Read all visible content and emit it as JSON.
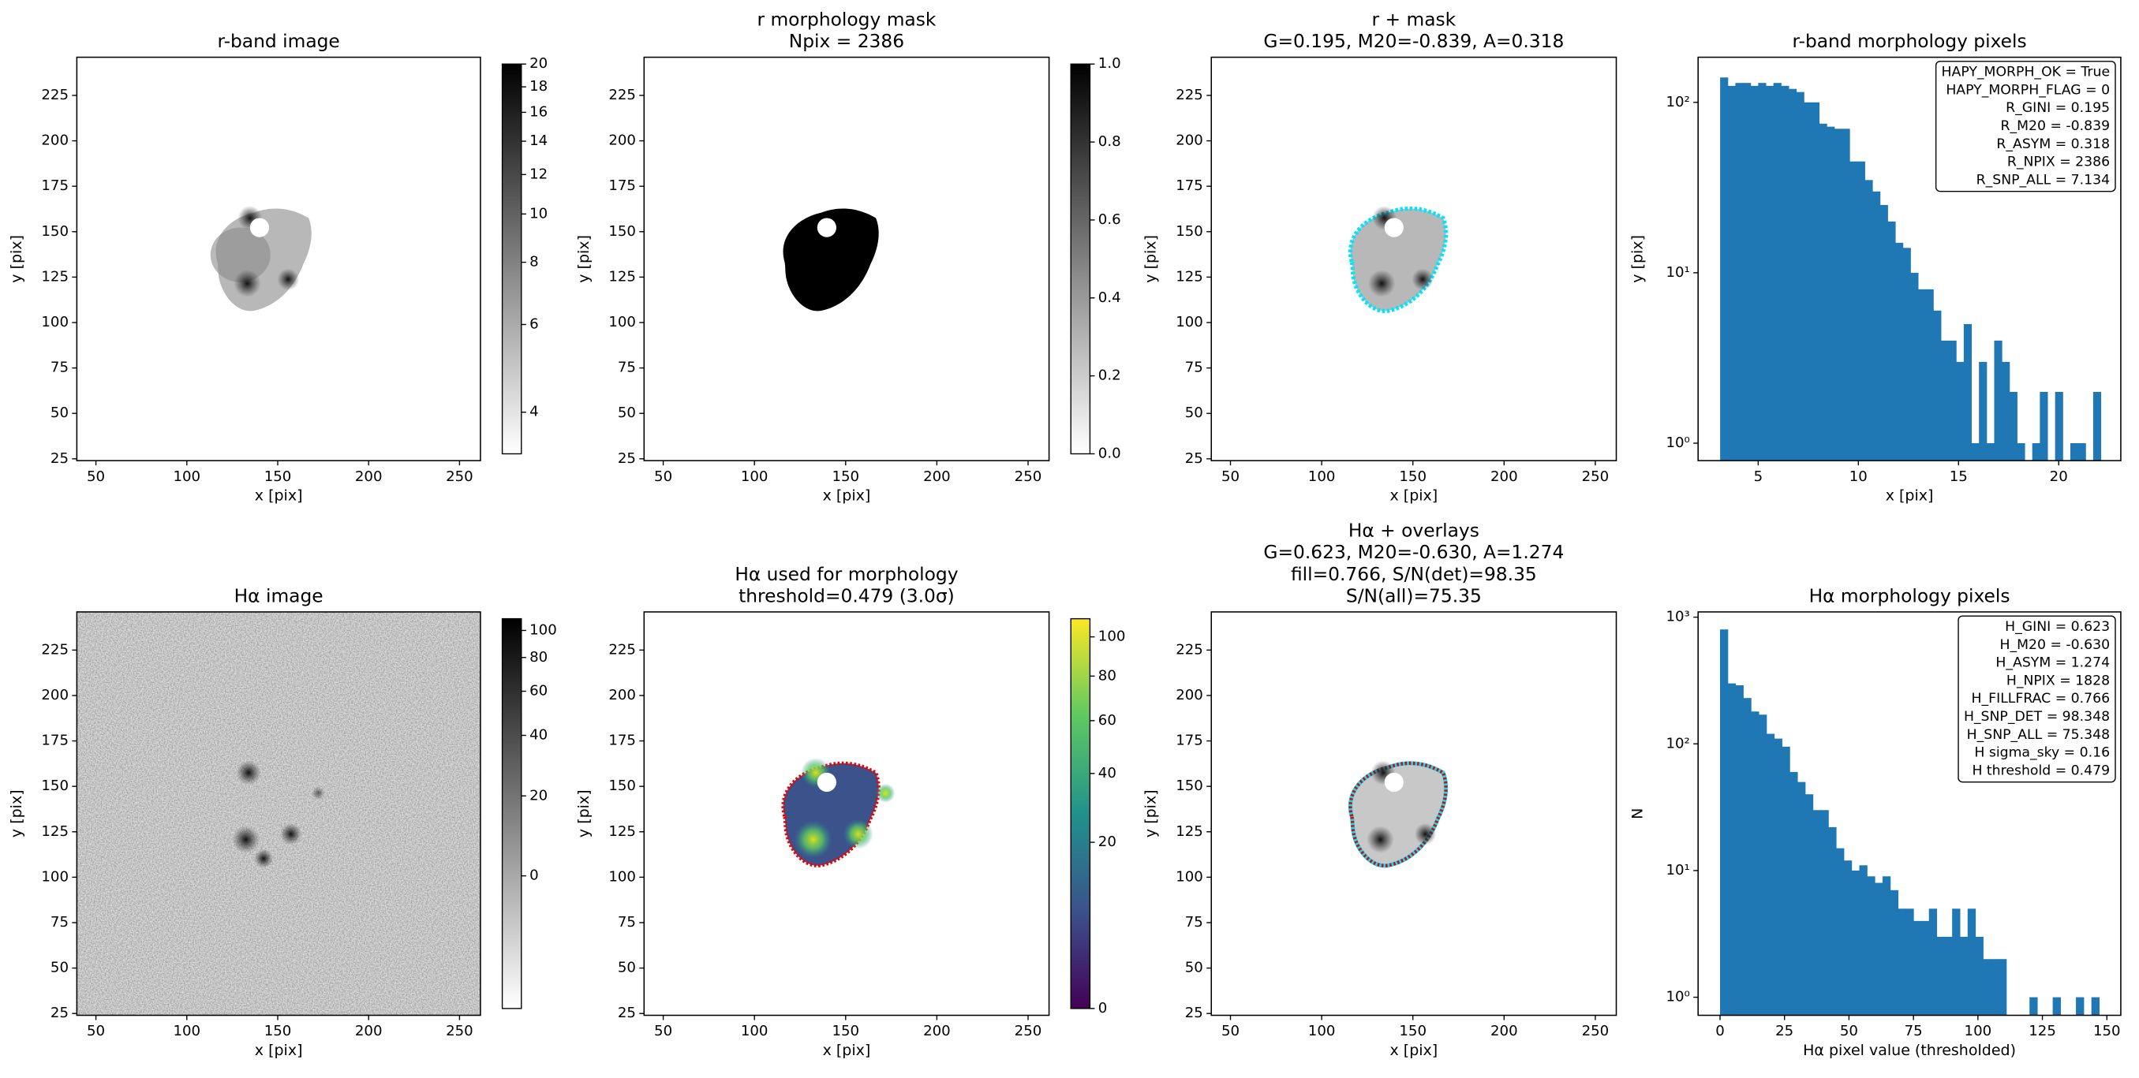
{
  "chart_data": [
    {
      "type": "image",
      "title": [
        "r-band image"
      ],
      "xlabel": "x [pix]",
      "ylabel": "y [pix]",
      "xlim": [
        39.5,
        261.5
      ],
      "ylim": [
        24,
        246
      ],
      "xticks": [
        50,
        100,
        150,
        200,
        250
      ],
      "yticks": [
        25,
        50,
        75,
        100,
        125,
        150,
        175,
        200,
        225
      ],
      "colorbar": {
        "cmap": "gray_r",
        "scale": "log",
        "lim": [
          3.3,
          20
        ],
        "ticks": [
          4,
          6,
          8,
          10,
          12,
          14,
          16,
          18,
          20
        ]
      }
    },
    {
      "type": "image",
      "title": [
        "r morphology mask",
        "Npix = 2386"
      ],
      "xlabel": "x [pix]",
      "ylabel": "y [pix]",
      "xlim": [
        39.5,
        261.5
      ],
      "ylim": [
        24,
        246
      ],
      "xticks": [
        50,
        100,
        150,
        200,
        250
      ],
      "yticks": [
        25,
        50,
        75,
        100,
        125,
        150,
        175,
        200,
        225
      ],
      "colorbar": {
        "cmap": "gray_r",
        "scale": "linear",
        "lim": [
          0,
          1
        ],
        "ticks": [
          {
            "value": 0,
            "label": "0.0"
          },
          0.2,
          0.4,
          0.6,
          0.8,
          {
            "value": 1,
            "label": "1.0"
          }
        ]
      }
    },
    {
      "type": "image",
      "title": [
        "r + mask",
        "G=0.195, M20=-0.839, A=0.318"
      ],
      "xlabel": "x [pix]",
      "ylabel": "y [pix]",
      "xlim": [
        39.5,
        261.5
      ],
      "ylim": [
        24,
        246
      ],
      "xticks": [
        50,
        100,
        150,
        200,
        250
      ],
      "yticks": [
        25,
        50,
        75,
        100,
        125,
        150,
        175,
        200,
        225
      ]
    },
    {
      "type": "histogram",
      "title": [
        "r-band morphology pixels"
      ],
      "xlabel": "x [pix]",
      "ylabel": "y [pix]",
      "color": "#1f77b4",
      "log_y": true,
      "xlim": [
        2.0,
        23.1
      ],
      "ylim": [
        0.79,
        184
      ],
      "xticks": [
        5,
        10,
        15,
        20
      ],
      "yticks": [
        {
          "value": 1,
          "label": "10⁰"
        },
        {
          "value": 10,
          "label": "10¹"
        },
        {
          "value": 100,
          "label": "10²"
        }
      ],
      "bins": [
        3.1,
        3.48,
        3.86,
        4.24,
        4.62,
        5.0,
        5.38,
        5.76,
        6.14,
        6.52,
        6.9,
        7.28,
        7.66,
        8.04,
        8.42,
        8.8,
        9.18,
        9.56,
        9.94,
        10.32,
        10.7,
        11.08,
        11.46,
        11.84,
        12.22,
        12.6,
        12.98,
        13.36,
        13.74,
        14.12,
        14.5,
        14.88,
        15.26,
        15.64,
        16.02,
        16.4,
        16.78,
        17.16,
        17.54,
        17.92,
        18.3,
        18.68,
        19.06,
        19.44,
        19.82,
        20.2,
        20.58,
        20.96,
        21.34,
        21.72,
        22.1
      ],
      "counts": [
        140,
        125,
        130,
        130,
        125,
        130,
        125,
        130,
        125,
        120,
        115,
        100,
        100,
        75,
        72,
        70,
        70,
        45,
        45,
        35,
        30,
        25,
        20,
        15,
        14,
        10,
        8,
        8,
        6,
        4,
        4,
        3,
        5,
        1,
        3,
        1,
        4,
        3,
        2,
        1,
        0,
        1,
        2,
        0,
        2,
        0,
        1,
        1,
        0,
        2
      ],
      "annotation_loc": "upper right",
      "annotation": [
        "HAPY_MORPH_OK = True",
        "HAPY_MORPH_FLAG = 0",
        "R_GINI = 0.195",
        "R_M20 = -0.839",
        "R_ASYM = 0.318",
        "R_NPIX = 2386",
        "R_SNP_ALL = 7.134"
      ]
    },
    {
      "type": "image",
      "title": [
        "Hα image"
      ],
      "xlabel": "x [pix]",
      "ylabel": "y [pix]",
      "xlim": [
        39.5,
        261.5
      ],
      "ylim": [
        24,
        246
      ],
      "xticks": [
        50,
        100,
        150,
        200,
        250
      ],
      "yticks": [
        25,
        50,
        75,
        100,
        125,
        150,
        175,
        200,
        225
      ],
      "colorbar": {
        "cmap": "gray_r",
        "scale": "asinh",
        "lim": [
          -37,
          110
        ],
        "ticks": [
          0,
          20,
          40,
          60,
          80,
          100
        ]
      }
    },
    {
      "type": "image",
      "title": [
        "Hα used for morphology",
        "threshold=0.479 (3.0σ)"
      ],
      "xlabel": "x [pix]",
      "ylabel": "y [pix]",
      "xlim": [
        39.5,
        261.5
      ],
      "ylim": [
        24,
        246
      ],
      "xticks": [
        50,
        100,
        150,
        200,
        250
      ],
      "yticks": [
        25,
        50,
        75,
        100,
        125,
        150,
        175,
        200,
        225
      ],
      "colorbar": {
        "cmap": "viridis",
        "scale": "sqrt",
        "lim": [
          0,
          110
        ],
        "ticks": [
          0,
          20,
          40,
          60,
          80,
          100
        ]
      }
    },
    {
      "type": "image",
      "title": [
        "Hα + overlays",
        "G=0.623, M20=-0.630, A=1.274",
        "fill=0.766, S/N(det)=98.35",
        "S/N(all)=75.35"
      ],
      "xlabel": "x [pix]",
      "ylabel": "y [pix]",
      "xlim": [
        39.5,
        261.5
      ],
      "ylim": [
        24,
        246
      ],
      "xticks": [
        50,
        100,
        150,
        200,
        250
      ],
      "yticks": [
        25,
        50,
        75,
        100,
        125,
        150,
        175,
        200,
        225
      ]
    },
    {
      "type": "histogram",
      "title": [
        "Hα morphology pixels"
      ],
      "xlabel": "Hα pixel value (thresholded)",
      "ylabel": "N",
      "color": "#1f77b4",
      "log_y": true,
      "xlim": [
        -8.5,
        155.4
      ],
      "ylim": [
        0.72,
        1100
      ],
      "xticks": [
        0,
        25,
        50,
        75,
        100,
        125,
        150
      ],
      "yticks": [
        {
          "value": 1,
          "label": "10⁰"
        },
        {
          "value": 10,
          "label": "10¹"
        },
        {
          "value": 100,
          "label": "10²"
        },
        {
          "value": 1000,
          "label": "10³"
        }
      ],
      "bins": [
        0,
        3,
        6,
        9,
        12,
        15,
        18,
        21,
        24,
        27,
        30,
        33,
        36,
        39,
        42,
        45,
        48,
        51,
        54,
        57,
        60,
        63,
        66,
        69,
        72,
        75,
        78,
        81,
        84,
        87,
        90,
        93,
        96,
        99,
        102,
        105,
        108,
        111,
        114,
        117,
        120,
        123,
        126,
        129,
        132,
        135,
        138,
        141,
        144,
        147,
        150
      ],
      "counts": [
        800,
        300,
        290,
        230,
        180,
        170,
        120,
        110,
        95,
        60,
        50,
        40,
        30,
        30,
        22,
        15,
        12,
        10,
        11,
        9,
        8,
        9,
        7,
        5,
        5,
        4,
        4,
        5,
        3,
        3,
        5,
        3,
        5,
        3,
        2,
        2,
        2,
        0,
        0,
        0,
        1,
        0,
        0,
        1,
        0,
        0,
        1,
        0,
        1,
        0
      ],
      "annotation_loc": "upper right",
      "annotation": [
        "H_GINI = 0.623",
        "H_M20 = -0.630",
        "H_ASYM = 1.274",
        "H_NPIX = 1828",
        "H_FILLFRAC = 0.766",
        "H_SNP_DET = 98.348",
        "H_SNP_ALL = 75.348",
        "H sigma_sky = 0.16",
        "H threshold = 0.479"
      ]
    }
  ]
}
